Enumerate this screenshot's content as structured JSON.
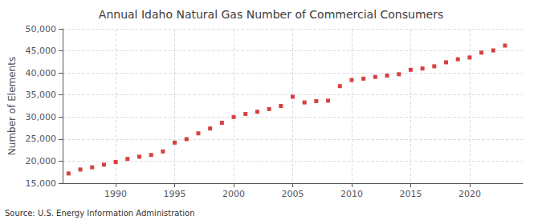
{
  "chart_data": {
    "type": "scatter",
    "title": "Annual Idaho Natural Gas Number of Commercial Consumers",
    "ylabel": "Number of Elements",
    "annotation": "Source: U.S. Energy Information Administration",
    "x": [
      1986,
      1987,
      1988,
      1989,
      1990,
      1991,
      1992,
      1993,
      1994,
      1995,
      1996,
      1997,
      1998,
      1999,
      2000,
      2001,
      2002,
      2003,
      2004,
      2005,
      2006,
      2007,
      2008,
      2009,
      2010,
      2011,
      2012,
      2013,
      2014,
      2015,
      2016,
      2017,
      2018,
      2019,
      2020,
      2021,
      2022,
      2023
    ],
    "values": [
      17200,
      18100,
      18600,
      19200,
      19800,
      20500,
      21000,
      21400,
      22200,
      24200,
      25000,
      26300,
      27400,
      28700,
      30000,
      30700,
      31200,
      31800,
      32500,
      34600,
      33300,
      33600,
      33700,
      37000,
      38400,
      38700,
      39100,
      39400,
      39700,
      40700,
      41000,
      41500,
      42400,
      43100,
      43500,
      44600,
      45100,
      46200
    ],
    "color": "#cc1111",
    "marker": "square",
    "xlim": [
      1985.5,
      2024.5
    ],
    "xticks": [
      1990,
      1995,
      2000,
      2005,
      2010,
      2015,
      2020
    ],
    "ylim": [
      15000,
      50000
    ],
    "yticks": [
      {
        "value": 15000,
        "label": "15,000"
      },
      {
        "value": 20000,
        "label": "20,000"
      },
      {
        "value": 25000,
        "label": "25,000"
      },
      {
        "value": 30000,
        "label": "30,000"
      },
      {
        "value": 35000,
        "label": "35,000"
      },
      {
        "value": 40000,
        "label": "40,000"
      },
      {
        "value": 45000,
        "label": "45,000"
      },
      {
        "value": 50000,
        "label": "50,000"
      }
    ],
    "grid": true
  }
}
